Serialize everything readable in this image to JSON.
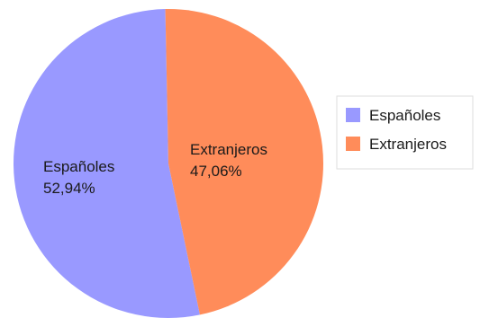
{
  "chart_data": {
    "type": "pie",
    "slices": [
      {
        "label": "Españoles",
        "value": 52.94,
        "value_label": "52,94%",
        "color": "#9999ff"
      },
      {
        "label": "Extranjeros",
        "value": 47.06,
        "value_label": "47,06%",
        "color": "#ff8c5a"
      }
    ],
    "legend": {
      "placement": "right",
      "entries": [
        "Españoles",
        "Extranjeros"
      ]
    }
  }
}
